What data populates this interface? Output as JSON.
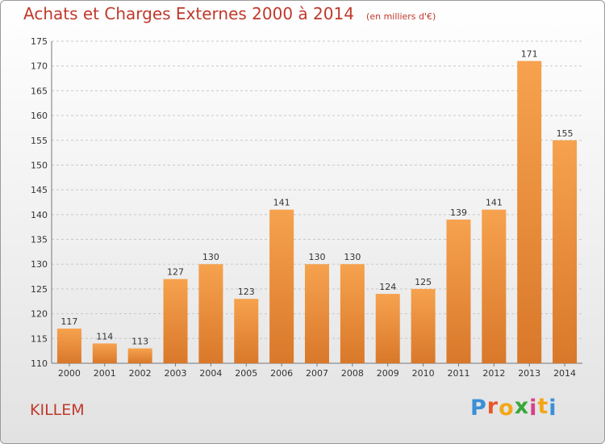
{
  "title": "Achats et Charges Externes 2000 à 2014",
  "unit": "(en milliers d'€)",
  "location": "KILLEM",
  "brand": {
    "letters": [
      "P",
      "r",
      "o",
      "x",
      "i",
      "t",
      "i"
    ],
    "colors": [
      "#3a8fd6",
      "#e8562a",
      "#f2a71b",
      "#3aa63a",
      "#d93f8b",
      "#f2a71b",
      "#3a8fd6"
    ]
  },
  "colors": {
    "bar_top": "#f6a24e",
    "bar_bottom": "#d9782a",
    "text": "#c0392b",
    "grid": "#c8c8c8"
  },
  "chart_data": {
    "type": "bar",
    "categories": [
      "2000",
      "2001",
      "2002",
      "2003",
      "2004",
      "2005",
      "2006",
      "2007",
      "2008",
      "2009",
      "2010",
      "2011",
      "2012",
      "2013",
      "2014"
    ],
    "values": [
      117,
      114,
      113,
      127,
      130,
      123,
      141,
      130,
      130,
      124,
      125,
      139,
      141,
      171,
      155
    ],
    "ylim": [
      110,
      175
    ],
    "yticks": [
      110,
      115,
      120,
      125,
      130,
      135,
      140,
      145,
      150,
      155,
      160,
      165,
      170,
      175
    ],
    "grid": true,
    "data_labels": true
  }
}
